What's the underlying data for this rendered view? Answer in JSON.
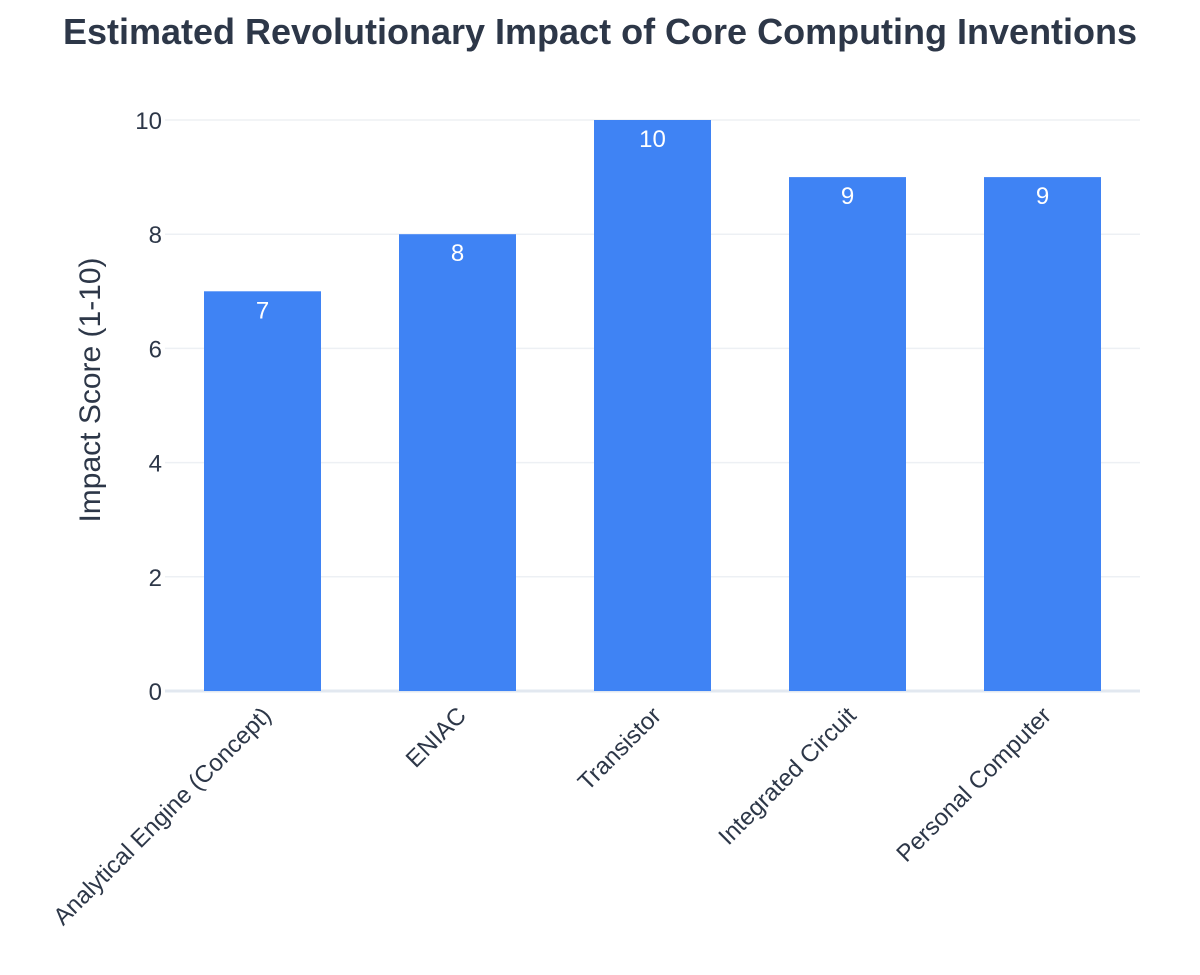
{
  "chart_data": {
    "type": "bar",
    "title": "Estimated Revolutionary Impact of Core Computing Inventions",
    "ylabel": "Impact Score (1-10)",
    "xlabel": "",
    "categories": [
      "Analytical Engine (Concept)",
      "ENIAC",
      "Transistor",
      "Integrated Circuit",
      "Personal Computer"
    ],
    "values": [
      7,
      8,
      10,
      9,
      9
    ],
    "data_labels": [
      "7",
      "8",
      "10",
      "9",
      "9"
    ],
    "ylim": [
      0,
      10
    ],
    "yticks": [
      0,
      2,
      4,
      6,
      8,
      10
    ],
    "ytick_labels": [
      "0",
      "2",
      "4",
      "6",
      "8",
      "10"
    ],
    "grid": true,
    "legend": "none",
    "colors": {
      "bar": "#3f83f4",
      "text": "#2d3748",
      "grid": "#edf0f4",
      "data_label": "#ffffff"
    }
  }
}
